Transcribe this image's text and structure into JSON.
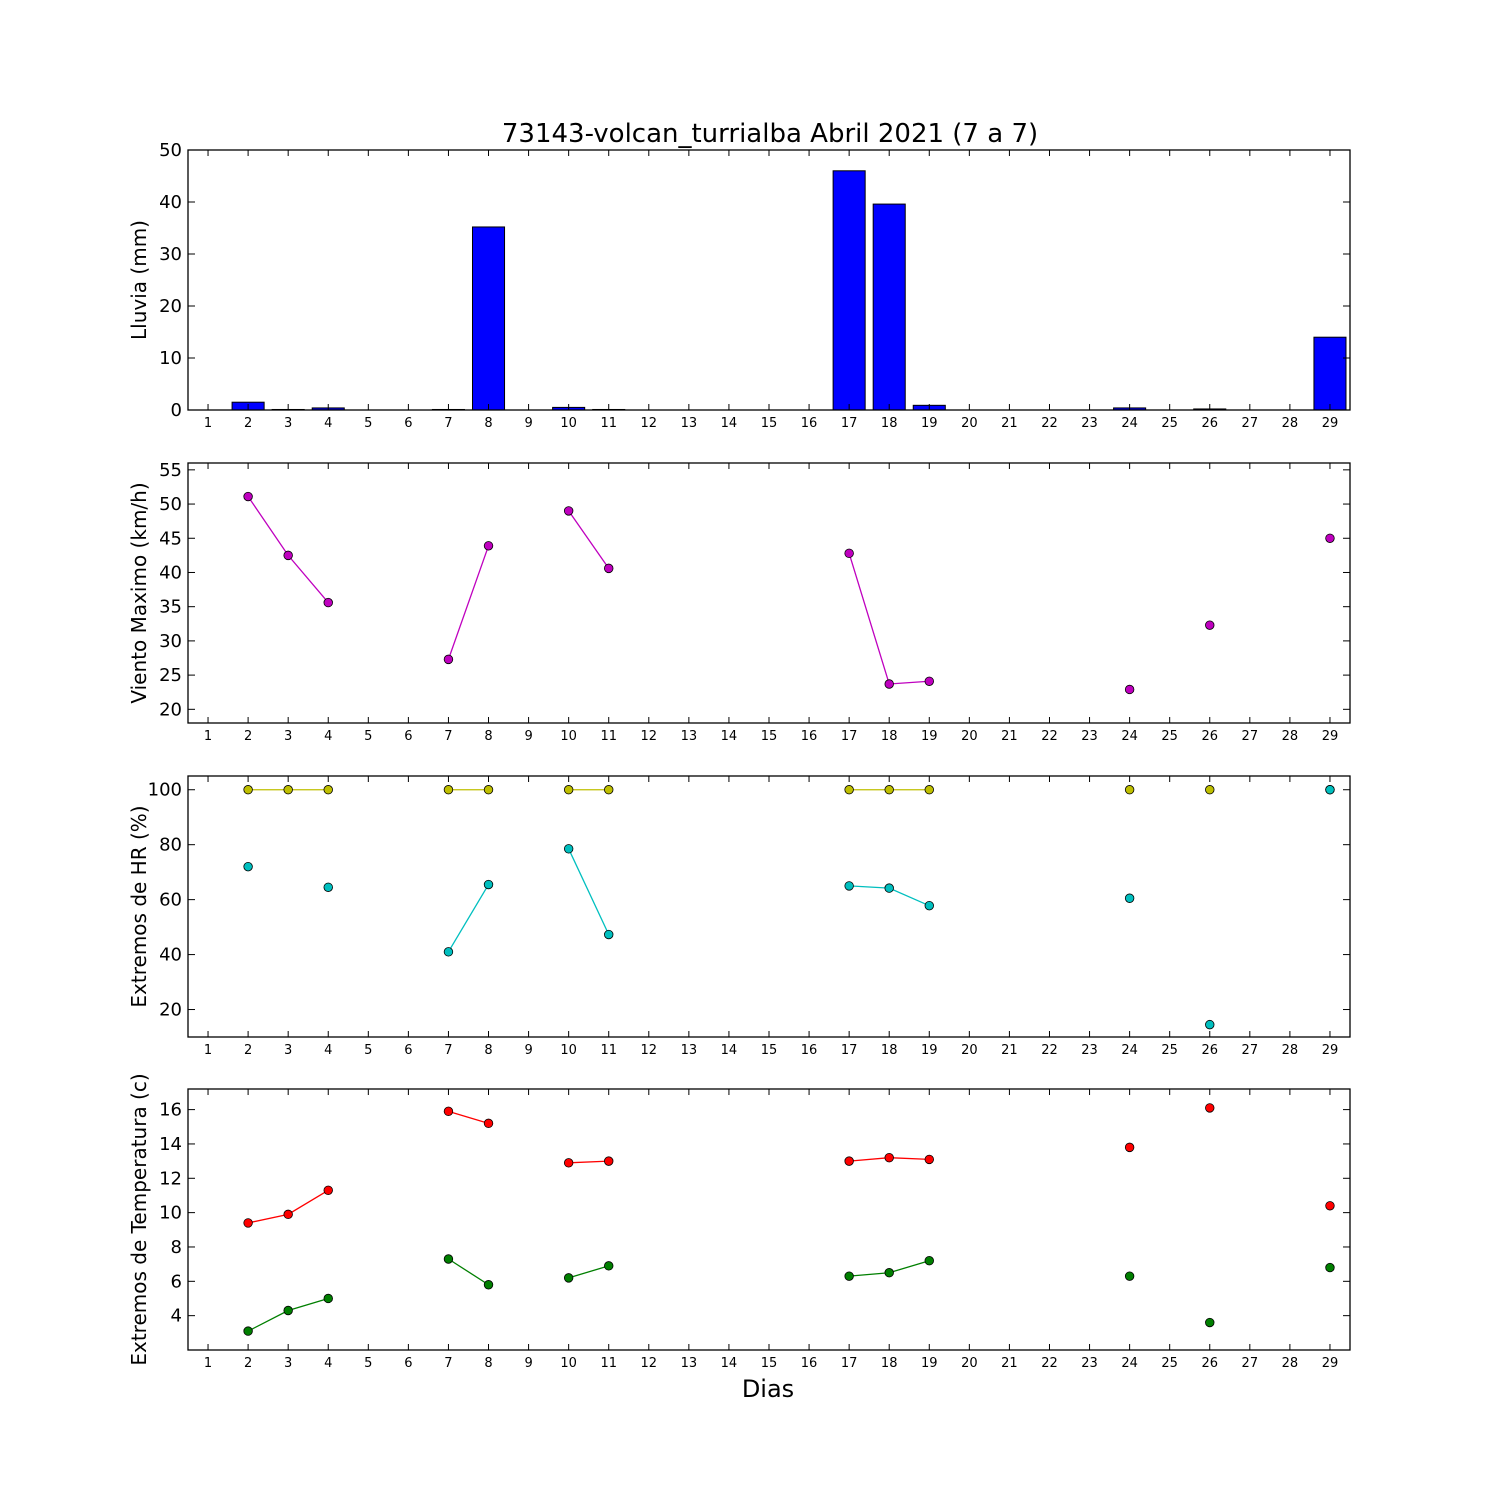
{
  "chart_data": [
    {
      "type": "bar",
      "title": "73143-volcan_turrialba Abril 2021  (7 a 7)",
      "ylabel": "Lluvia (mm)",
      "xlabel": "",
      "x_ticks": [
        1,
        2,
        3,
        4,
        5,
        6,
        7,
        8,
        9,
        10,
        11,
        12,
        13,
        14,
        15,
        16,
        17,
        18,
        19,
        20,
        21,
        22,
        23,
        24,
        25,
        26,
        27,
        28,
        29
      ],
      "ylim": [
        0,
        50
      ],
      "y_ticks": [
        0,
        10,
        20,
        30,
        40,
        50
      ],
      "bar_color": "#0000ff",
      "x": [
        2,
        3,
        4,
        7,
        8,
        10,
        11,
        17,
        18,
        19,
        24,
        26,
        29
      ],
      "values": [
        1.5,
        0.1,
        0.4,
        0.1,
        35.2,
        0.5,
        0.1,
        46.0,
        39.6,
        0.9,
        0.4,
        0.2,
        14.0
      ]
    },
    {
      "type": "line",
      "title": "",
      "ylabel": "Viento Maximo (km/h)",
      "xlabel": "",
      "x_ticks": [
        1,
        2,
        3,
        4,
        5,
        6,
        7,
        8,
        9,
        10,
        11,
        12,
        13,
        14,
        15,
        16,
        17,
        18,
        19,
        20,
        21,
        22,
        23,
        24,
        25,
        26,
        27,
        28,
        29
      ],
      "ylim": [
        18,
        56
      ],
      "y_ticks": [
        20,
        25,
        30,
        35,
        40,
        45,
        50,
        55
      ],
      "series": [
        {
          "color": "#bf00bf",
          "x": [
            2,
            3,
            4,
            7,
            8,
            10,
            11,
            17,
            18,
            19,
            24,
            26,
            29
          ],
          "values": [
            51.1,
            42.5,
            35.6,
            27.3,
            43.9,
            49.0,
            40.6,
            42.8,
            23.7,
            24.1,
            22.9,
            32.3,
            45.0
          ]
        }
      ]
    },
    {
      "type": "line",
      "title": "",
      "ylabel": "Extremos de HR (%)",
      "xlabel": "",
      "x_ticks": [
        1,
        2,
        3,
        4,
        5,
        6,
        7,
        8,
        9,
        10,
        11,
        12,
        13,
        14,
        15,
        16,
        17,
        18,
        19,
        20,
        21,
        22,
        23,
        24,
        25,
        26,
        27,
        28,
        29
      ],
      "ylim": [
        10,
        105
      ],
      "y_ticks": [
        20,
        40,
        60,
        80,
        100
      ],
      "series": [
        {
          "color": "#bfbf00",
          "x": [
            2,
            3,
            4,
            7,
            8,
            10,
            11,
            17,
            18,
            19,
            24,
            26,
            29
          ],
          "values": [
            100,
            100,
            100,
            100,
            100,
            100,
            100,
            100,
            100,
            100,
            100,
            100,
            100
          ]
        },
        {
          "color": "#00bfbf",
          "x": [
            2,
            4,
            7,
            8,
            10,
            11,
            17,
            18,
            19,
            24,
            26,
            29
          ],
          "values": [
            72,
            64.5,
            41,
            65.5,
            78.5,
            47.3,
            65,
            64.2,
            57.8,
            60.5,
            14.5,
            100
          ]
        }
      ]
    },
    {
      "type": "line",
      "title": "",
      "ylabel": "Extremos de Temperatura (c)",
      "xlabel": "Dias",
      "x_ticks": [
        1,
        2,
        3,
        4,
        5,
        6,
        7,
        8,
        9,
        10,
        11,
        12,
        13,
        14,
        15,
        16,
        17,
        18,
        19,
        20,
        21,
        22,
        23,
        24,
        25,
        26,
        27,
        28,
        29
      ],
      "ylim": [
        2,
        17.2
      ],
      "y_ticks": [
        4,
        6,
        8,
        10,
        12,
        14,
        16
      ],
      "series": [
        {
          "color": "#ff0000",
          "x": [
            2,
            3,
            4,
            7,
            8,
            10,
            11,
            17,
            18,
            19,
            24,
            26,
            29
          ],
          "values": [
            9.4,
            9.9,
            11.3,
            15.9,
            15.2,
            12.9,
            13.0,
            13.0,
            13.2,
            13.1,
            13.8,
            16.1,
            10.4
          ]
        },
        {
          "color": "#007f00",
          "x": [
            2,
            3,
            4,
            7,
            8,
            10,
            11,
            17,
            18,
            19,
            24,
            26,
            29
          ],
          "values": [
            3.1,
            4.3,
            5.0,
            7.3,
            5.8,
            6.2,
            6.9,
            6.3,
            6.5,
            7.2,
            6.3,
            3.6,
            6.8
          ]
        }
      ]
    }
  ]
}
